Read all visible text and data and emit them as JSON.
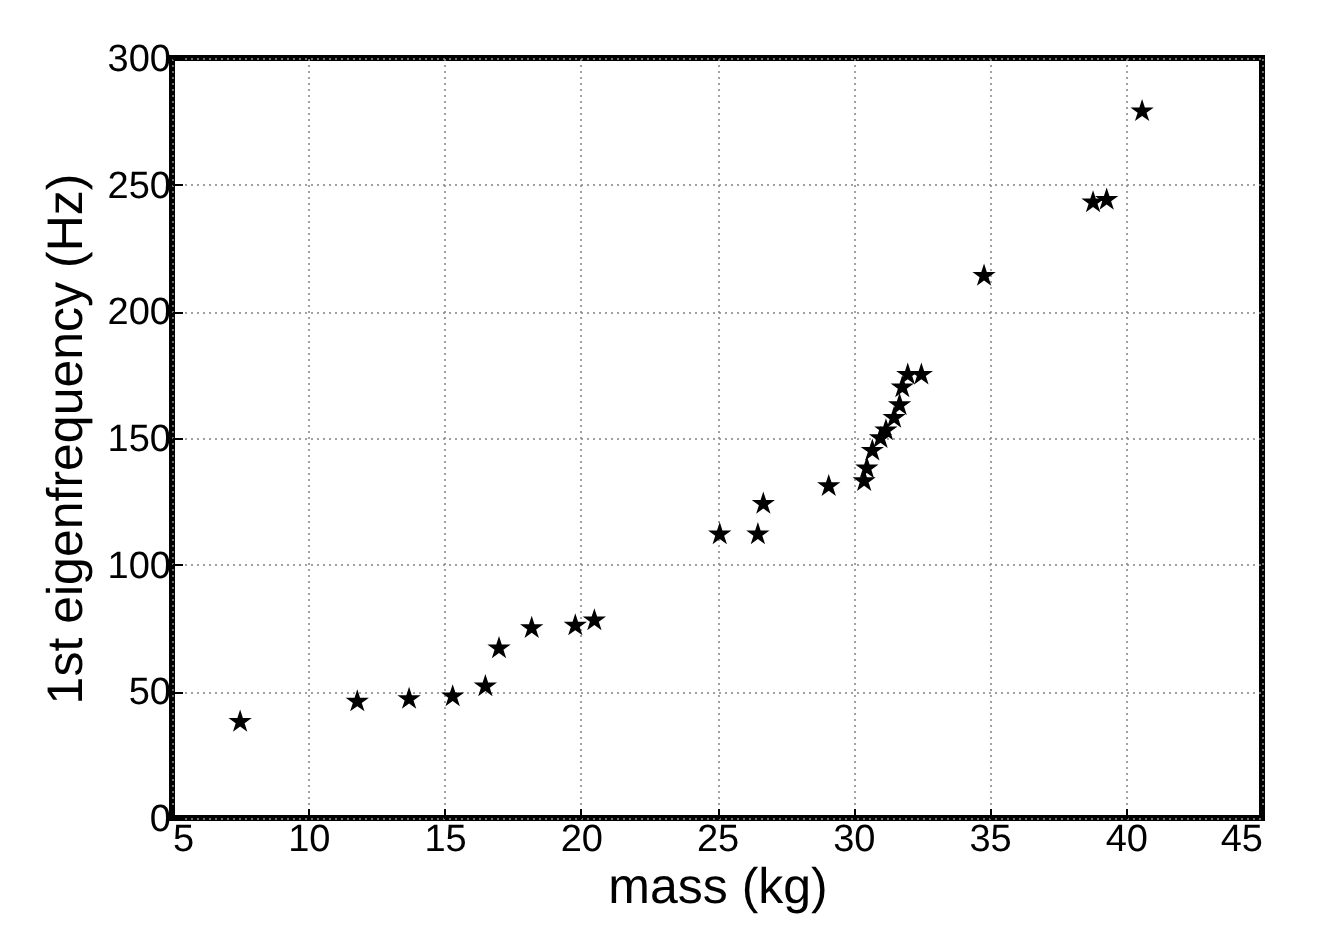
{
  "chart_data": {
    "type": "scatter",
    "xlabel": "mass (kg)",
    "ylabel": "1st eigenfrequency (Hz)",
    "x": [
      7.5,
      11.8,
      13.7,
      15.3,
      16.5,
      17.0,
      18.2,
      19.8,
      20.5,
      25.1,
      26.5,
      26.7,
      29.1,
      30.4,
      30.5,
      30.7,
      31.0,
      31.2,
      31.5,
      31.7,
      31.8,
      32.0,
      32.5,
      34.8,
      38.8,
      39.3,
      40.6
    ],
    "series": [
      {
        "color": "#000000",
        "values": [
          38,
          46,
          47,
          48,
          52,
          67,
          75,
          76,
          78,
          112,
          112,
          124,
          131,
          133,
          138,
          145,
          150,
          153,
          158,
          163,
          170,
          175,
          175,
          214,
          243,
          244,
          279
        ]
      }
    ],
    "xlim": [
      5,
      45
    ],
    "xticks": [
      5,
      10,
      15,
      20,
      25,
      30,
      35,
      40,
      45
    ],
    "ylim": [
      0,
      300
    ],
    "yticks": [
      0,
      50,
      100,
      150,
      200,
      250,
      300
    ],
    "grid": true,
    "marker": "star",
    "legend": false
  }
}
